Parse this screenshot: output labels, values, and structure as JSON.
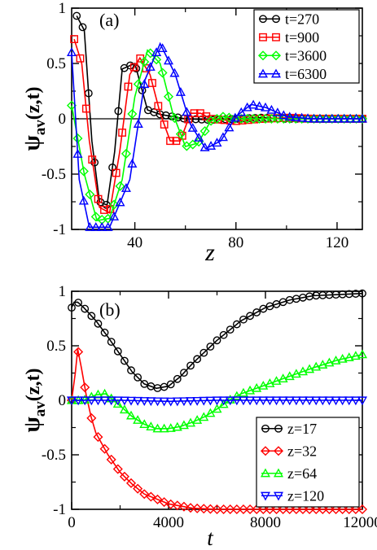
{
  "chart_data": [
    {
      "panel": "(a)",
      "type": "line",
      "xlabel": "z",
      "ylabel": "ψ",
      "ylabel_sub": "av",
      "ylabel_args": "(z,t)",
      "xlim": [
        15,
        130
      ],
      "ylim": [
        -1,
        1
      ],
      "xticks": [
        40,
        80,
        120
      ],
      "yticks": [
        -1,
        -0.5,
        0,
        0.5,
        1
      ],
      "ytick_labels": [
        "-1",
        "-0.5",
        "0",
        "0.5",
        "1"
      ],
      "zero_line": true,
      "legend_position": "top-right",
      "series": [
        {
          "name": "t=270",
          "color": "#000000",
          "marker": "circle",
          "x": [
            17,
            20,
            23,
            26,
            29,
            32,
            35,
            40,
            45,
            50,
            55,
            60,
            70,
            80,
            90,
            100,
            110,
            120,
            130
          ],
          "y": [
            0.93,
            0.8,
            -0.2,
            -0.75,
            -0.78,
            -0.3,
            0.45,
            0.5,
            0.08,
            0.04,
            0.02,
            0.0,
            -0.01,
            0.0,
            0.01,
            0.0,
            0.0,
            0.0,
            0.0
          ]
        },
        {
          "name": "t=900",
          "color": "#ff0000",
          "marker": "square",
          "x": [
            16,
            19,
            22,
            26,
            30,
            34,
            38,
            42,
            46,
            50,
            54,
            58,
            62,
            66,
            70,
            80,
            90,
            100,
            110,
            120,
            130
          ],
          "y": [
            0.72,
            0.5,
            -0.2,
            -0.8,
            -0.85,
            -0.3,
            0.4,
            0.55,
            0.4,
            0.05,
            -0.2,
            -0.2,
            0.05,
            0.05,
            0.0,
            -0.02,
            0.0,
            0.01,
            0.0,
            0.0,
            0.0
          ]
        },
        {
          "name": "t=3600",
          "color": "#00ff00",
          "marker": "diamond",
          "x": [
            15,
            20,
            25,
            30,
            35,
            40,
            45,
            50,
            55,
            60,
            65,
            70,
            75,
            80,
            85,
            90,
            100,
            110,
            120,
            130
          ],
          "y": [
            0.12,
            -0.5,
            -0.92,
            -0.9,
            -0.55,
            0.2,
            0.62,
            0.5,
            0.05,
            -0.25,
            -0.22,
            -0.02,
            0.02,
            0.0,
            0.0,
            0.0,
            0.0,
            0.0,
            0.0,
            0.0
          ]
        },
        {
          "name": "t=6300",
          "color": "#0000ff",
          "marker": "triangle",
          "x": [
            15,
            18,
            22,
            30,
            38,
            44,
            50,
            56,
            62,
            68,
            74,
            80,
            86,
            92,
            100,
            110,
            120,
            130
          ],
          "y": [
            0.6,
            -0.55,
            -0.98,
            -0.98,
            -0.55,
            0.35,
            0.68,
            0.4,
            -0.05,
            -0.27,
            -0.2,
            0.02,
            0.13,
            0.1,
            0.02,
            0.0,
            0.0,
            0.0
          ]
        }
      ]
    },
    {
      "panel": "(b)",
      "type": "line",
      "xlabel": "t",
      "ylabel": "ψ",
      "ylabel_sub": "av",
      "ylabel_args": "(z,t)",
      "xlim": [
        0,
        12000
      ],
      "ylim": [
        -1,
        1
      ],
      "xticks": [
        0,
        4000,
        8000,
        12000
      ],
      "yticks": [
        -1,
        -0.5,
        0,
        0.5,
        1
      ],
      "ytick_labels": [
        "-1",
        "-0.5",
        "0",
        "0.5",
        "1"
      ],
      "zero_line": false,
      "legend_position": "bottom-right",
      "series": [
        {
          "name": "z=17",
          "color": "#000000",
          "marker": "circle",
          "x": [
            0,
            100,
            250,
            500,
            1000,
            1500,
            2000,
            2500,
            3000,
            3500,
            4000,
            4500,
            5000,
            6000,
            7000,
            8000,
            9000,
            10000,
            11000,
            12000
          ],
          "y": [
            0.85,
            0.9,
            0.9,
            0.85,
            0.73,
            0.58,
            0.42,
            0.26,
            0.15,
            0.11,
            0.13,
            0.22,
            0.34,
            0.55,
            0.73,
            0.85,
            0.92,
            0.96,
            0.97,
            0.98
          ]
        },
        {
          "name": "z=32",
          "color": "#ff0000",
          "marker": "diamond",
          "x": [
            0,
            150,
            250,
            400,
            600,
            800,
            1000,
            1500,
            2000,
            2500,
            3000,
            4000,
            5000,
            6000,
            8000,
            10000,
            12000
          ],
          "y": [
            0.0,
            0.25,
            0.47,
            0.3,
            0.05,
            -0.15,
            -0.3,
            -0.5,
            -0.66,
            -0.77,
            -0.86,
            -0.95,
            -0.99,
            -1.0,
            -1.0,
            -1.0,
            -1.0
          ]
        },
        {
          "name": "z=64",
          "color": "#00ff00",
          "marker": "triangle",
          "x": [
            0,
            500,
            1000,
            1400,
            2000,
            2500,
            3000,
            3500,
            4000,
            4500,
            5000,
            5500,
            6000,
            6500,
            7000,
            7500,
            8000,
            9000,
            10000,
            11000,
            12000
          ],
          "y": [
            0.0,
            0.0,
            0.05,
            0.06,
            -0.05,
            -0.15,
            -0.22,
            -0.26,
            -0.26,
            -0.24,
            -0.2,
            -0.15,
            -0.08,
            0.0,
            0.06,
            0.1,
            0.14,
            0.22,
            0.3,
            0.37,
            0.42
          ]
        },
        {
          "name": "z=120",
          "color": "#0000ff",
          "marker": "triangle-down",
          "x": [
            0,
            2000,
            4000,
            6000,
            8000,
            10000,
            12000
          ],
          "y": [
            0.0,
            0.0,
            -0.01,
            0.0,
            0.0,
            0.0,
            0.0
          ]
        }
      ]
    }
  ]
}
